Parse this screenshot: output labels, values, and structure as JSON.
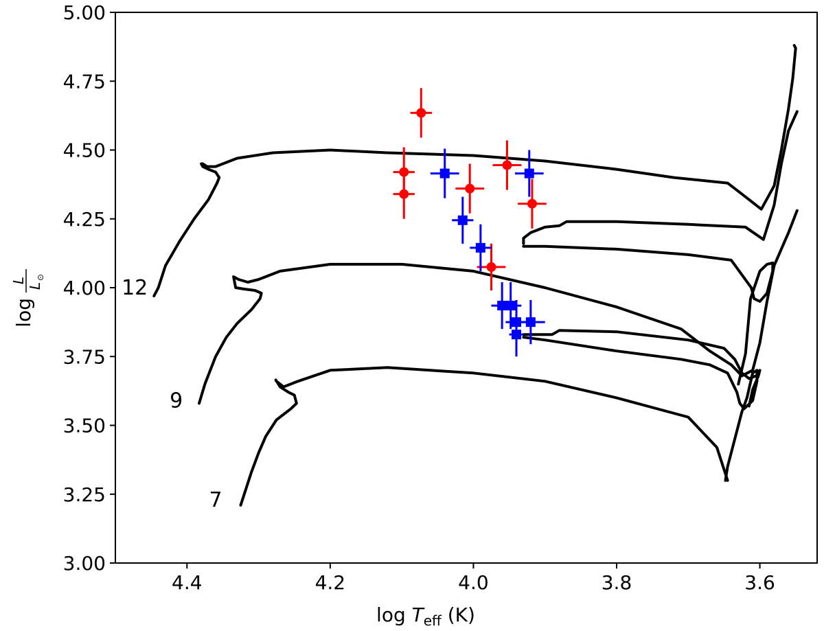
{
  "chart_data": {
    "type": "scatter",
    "title": "",
    "xlabel_main": "log ",
    "xlabel_T": "T",
    "xlabel_sub": "eff",
    "xlabel_unit": " (K)",
    "ylabel_log": "log",
    "ylabel_num": "L",
    "ylabel_den": "L",
    "ylabel_sun": "⊙",
    "xlim": [
      4.5,
      3.52
    ],
    "ylim": [
      3.0,
      5.0
    ],
    "x_ticks": [
      4.4,
      4.2,
      4.0,
      3.8,
      3.6
    ],
    "x_tick_labels": [
      "4.4",
      "4.2",
      "4.0",
      "3.8",
      "3.6"
    ],
    "y_ticks": [
      3.0,
      3.25,
      3.5,
      3.75,
      4.0,
      4.25,
      4.5,
      4.75,
      5.0
    ],
    "y_tick_labels": [
      "3.00",
      "3.25",
      "3.50",
      "3.75",
      "4.00",
      "4.25",
      "4.50",
      "4.75",
      "5.00"
    ],
    "colors": {
      "red": "#ff0000",
      "blue": "#0000ff",
      "track": "#000000"
    },
    "series": [
      {
        "name": "red circles",
        "color": "#ff0000",
        "marker": "circle",
        "points": [
          {
            "x": 4.073,
            "y": 4.635,
            "xerr": 0.015,
            "yerr": 0.09
          },
          {
            "x": 4.097,
            "y": 4.42,
            "xerr": 0.015,
            "yerr": 0.09
          },
          {
            "x": 4.097,
            "y": 4.34,
            "xerr": 0.015,
            "yerr": 0.09
          },
          {
            "x": 4.005,
            "y": 4.36,
            "xerr": 0.02,
            "yerr": 0.09
          },
          {
            "x": 3.953,
            "y": 4.445,
            "xerr": 0.02,
            "yerr": 0.09
          },
          {
            "x": 3.918,
            "y": 4.305,
            "xerr": 0.02,
            "yerr": 0.09
          },
          {
            "x": 3.975,
            "y": 4.075,
            "xerr": 0.02,
            "yerr": 0.085
          }
        ]
      },
      {
        "name": "blue squares",
        "color": "#0000ff",
        "marker": "square",
        "points": [
          {
            "x": 4.04,
            "y": 4.415,
            "xerr": 0.02,
            "yerr": 0.09
          },
          {
            "x": 3.922,
            "y": 4.415,
            "xerr": 0.02,
            "yerr": 0.085
          },
          {
            "x": 4.015,
            "y": 4.245,
            "xerr": 0.015,
            "yerr": 0.085
          },
          {
            "x": 3.99,
            "y": 4.145,
            "xerr": 0.015,
            "yerr": 0.085
          },
          {
            "x": 3.96,
            "y": 3.935,
            "xerr": 0.015,
            "yerr": 0.085
          },
          {
            "x": 3.948,
            "y": 3.935,
            "xerr": 0.015,
            "yerr": 0.085
          },
          {
            "x": 3.94,
            "y": 3.875,
            "xerr": 0.015,
            "yerr": 0.08
          },
          {
            "x": 3.92,
            "y": 3.875,
            "xerr": 0.02,
            "yerr": 0.08
          },
          {
            "x": 3.94,
            "y": 3.83,
            "xerr": 0.01,
            "yerr": 0.08
          }
        ]
      }
    ],
    "tracks": [
      {
        "label": "12",
        "label_at": [
          4.473,
          4.0
        ],
        "points": [
          [
            4.446,
            3.97
          ],
          [
            4.44,
            4.0
          ],
          [
            4.43,
            4.08
          ],
          [
            4.41,
            4.17
          ],
          [
            4.39,
            4.25
          ],
          [
            4.37,
            4.32
          ],
          [
            4.358,
            4.38
          ],
          [
            4.355,
            4.4
          ],
          [
            4.36,
            4.42
          ],
          [
            4.37,
            4.43
          ],
          [
            4.378,
            4.44
          ],
          [
            4.38,
            4.45
          ],
          [
            4.378,
            4.45
          ],
          [
            4.372,
            4.44
          ],
          [
            4.36,
            4.44
          ],
          [
            4.33,
            4.47
          ],
          [
            4.28,
            4.49
          ],
          [
            4.2,
            4.5
          ],
          [
            4.12,
            4.49
          ],
          [
            4.0,
            4.48
          ],
          [
            3.9,
            4.46
          ],
          [
            3.8,
            4.43
          ],
          [
            3.72,
            4.4
          ],
          [
            3.645,
            4.38
          ],
          [
            3.62,
            4.33
          ],
          [
            3.598,
            4.285
          ],
          [
            3.58,
            4.37
          ],
          [
            3.57,
            4.5
          ],
          [
            3.56,
            4.65
          ],
          [
            3.554,
            4.76
          ],
          [
            3.55,
            4.87
          ],
          [
            3.552,
            4.88
          ]
        ]
      },
      {
        "label": "",
        "label_at": [
          0,
          0
        ],
        "points": [
          [
            3.93,
            4.16
          ],
          [
            3.93,
            4.18
          ],
          [
            3.92,
            4.2
          ],
          [
            3.9,
            4.22
          ],
          [
            3.88,
            4.225
          ],
          [
            3.87,
            4.24
          ],
          [
            3.8,
            4.24
          ],
          [
            3.7,
            4.23
          ],
          [
            3.62,
            4.22
          ],
          [
            3.595,
            4.175
          ],
          [
            3.58,
            4.3
          ],
          [
            3.57,
            4.45
          ],
          [
            3.56,
            4.57
          ],
          [
            3.548,
            4.64
          ]
        ]
      },
      {
        "label": "",
        "label_at": [
          0,
          0
        ],
        "points": [
          [
            3.93,
            4.15
          ],
          [
            3.9,
            4.15
          ],
          [
            3.8,
            4.14
          ],
          [
            3.7,
            4.12
          ],
          [
            3.64,
            4.1
          ],
          [
            3.612,
            4.0
          ],
          [
            3.608,
            3.96
          ],
          [
            3.6,
            3.95
          ],
          [
            3.59,
            3.98
          ],
          [
            3.582,
            4.06
          ],
          [
            3.582,
            4.09
          ],
          [
            3.59,
            4.085
          ],
          [
            3.6,
            4.06
          ],
          [
            3.613,
            3.96
          ],
          [
            3.62,
            3.76
          ],
          [
            3.63,
            3.65
          ]
        ]
      },
      {
        "label": "9",
        "label_at": [
          4.415,
          3.59
        ],
        "points": [
          [
            4.383,
            3.58
          ],
          [
            4.375,
            3.65
          ],
          [
            4.36,
            3.75
          ],
          [
            4.345,
            3.82
          ],
          [
            4.33,
            3.87
          ],
          [
            4.31,
            3.92
          ],
          [
            4.298,
            3.96
          ],
          [
            4.296,
            3.98
          ],
          [
            4.305,
            3.99
          ],
          [
            4.32,
            3.995
          ],
          [
            4.332,
            4.0
          ],
          [
            4.335,
            4.04
          ],
          [
            4.328,
            4.03
          ],
          [
            4.315,
            4.02
          ],
          [
            4.3,
            4.03
          ],
          [
            4.27,
            4.06
          ],
          [
            4.2,
            4.085
          ],
          [
            4.1,
            4.085
          ],
          [
            4.0,
            4.06
          ],
          [
            3.9,
            4.0
          ],
          [
            3.8,
            3.93
          ],
          [
            3.71,
            3.85
          ],
          [
            3.67,
            3.77
          ],
          [
            3.64,
            3.72
          ],
          [
            3.625,
            3.68
          ],
          [
            3.61,
            3.7
          ],
          [
            3.6,
            3.8
          ],
          [
            3.59,
            3.95
          ],
          [
            3.58,
            4.08
          ],
          [
            3.56,
            4.2
          ],
          [
            3.548,
            4.28
          ]
        ]
      },
      {
        "label": "",
        "label_at": [
          0,
          0
        ],
        "points": [
          [
            3.93,
            3.83
          ],
          [
            3.89,
            3.83
          ],
          [
            3.88,
            3.845
          ],
          [
            3.8,
            3.84
          ],
          [
            3.7,
            3.81
          ],
          [
            3.65,
            3.78
          ],
          [
            3.635,
            3.74
          ],
          [
            3.625,
            3.69
          ],
          [
            3.615,
            3.67
          ],
          [
            3.605,
            3.68
          ],
          [
            3.6,
            3.7
          ],
          [
            3.602,
            3.68
          ],
          [
            3.61,
            3.63
          ],
          [
            3.615,
            3.57
          ]
        ]
      },
      {
        "label": "",
        "label_at": [
          0,
          0
        ],
        "points": [
          [
            3.93,
            3.82
          ],
          [
            3.9,
            3.81
          ],
          [
            3.8,
            3.77
          ],
          [
            3.71,
            3.74
          ],
          [
            3.67,
            3.72
          ],
          [
            3.645,
            3.69
          ],
          [
            3.632,
            3.62
          ],
          [
            3.628,
            3.58
          ],
          [
            3.622,
            3.56
          ],
          [
            3.61,
            3.59
          ],
          [
            3.604,
            3.66
          ],
          [
            3.604,
            3.7
          ],
          [
            3.61,
            3.69
          ],
          [
            3.618,
            3.6
          ],
          [
            3.625,
            3.55
          ],
          [
            3.63,
            3.5
          ],
          [
            3.645,
            3.35
          ],
          [
            3.648,
            3.3
          ]
        ]
      },
      {
        "label": "7",
        "label_at": [
          4.36,
          3.23
        ],
        "points": [
          [
            4.325,
            3.21
          ],
          [
            4.32,
            3.25
          ],
          [
            4.31,
            3.33
          ],
          [
            4.3,
            3.4
          ],
          [
            4.29,
            3.46
          ],
          [
            4.275,
            3.52
          ],
          [
            4.255,
            3.56
          ],
          [
            4.247,
            3.58
          ],
          [
            4.25,
            3.61
          ],
          [
            4.258,
            3.62
          ],
          [
            4.27,
            3.64
          ],
          [
            4.276,
            3.665
          ],
          [
            4.275,
            3.66
          ],
          [
            4.265,
            3.64
          ],
          [
            4.245,
            3.66
          ],
          [
            4.2,
            3.7
          ],
          [
            4.12,
            3.71
          ],
          [
            4.0,
            3.69
          ],
          [
            3.9,
            3.66
          ],
          [
            3.8,
            3.6
          ],
          [
            3.7,
            3.53
          ],
          [
            3.66,
            3.42
          ],
          [
            3.645,
            3.3
          ]
        ]
      }
    ]
  }
}
